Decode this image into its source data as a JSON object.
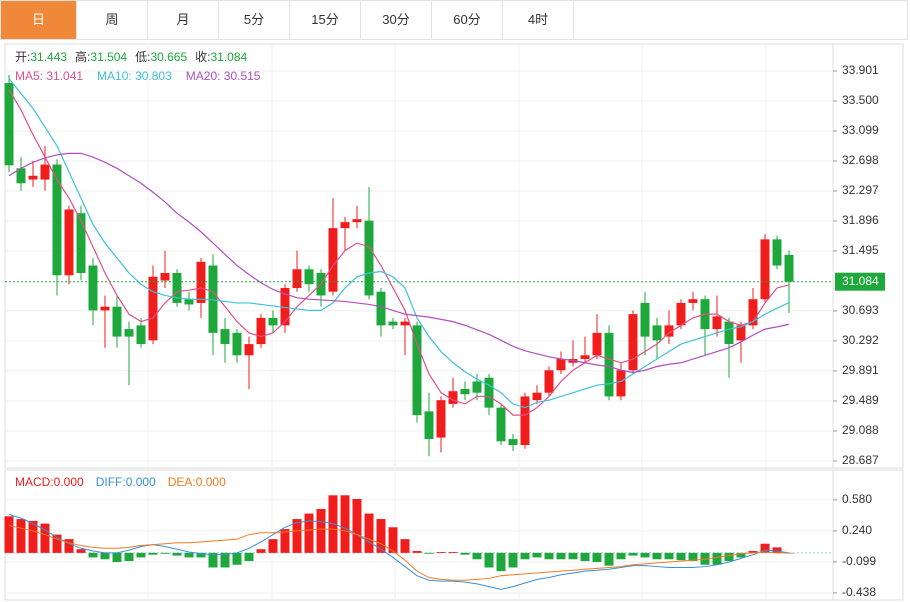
{
  "tabs": [
    "日",
    "周",
    "月",
    "5分",
    "15分",
    "30分",
    "60分",
    "4时"
  ],
  "chart_data": [
    {
      "type": "candlestick",
      "info": [
        {
          "label": "开:",
          "value": 31.443
        },
        {
          "label": "高:",
          "value": 31.504
        },
        {
          "label": "低:",
          "value": 30.665
        },
        {
          "label": "收:",
          "value": 31.084
        }
      ],
      "open": [
        33.74,
        32.6,
        32.45,
        32.45,
        32.65,
        31.17,
        32.0,
        31.3,
        30.7,
        30.75,
        30.45,
        30.5,
        30.3,
        31.1,
        31.2,
        30.85,
        30.8,
        31.3,
        30.45,
        30.4,
        30.1,
        30.25,
        30.6,
        30.5,
        31.0,
        31.25,
        31.2,
        30.95,
        31.8,
        31.88,
        31.9,
        30.95,
        30.55,
        30.5,
        30.5,
        29.35,
        29.0,
        29.45,
        29.65,
        29.75,
        29.8,
        29.4,
        28.98,
        28.9,
        29.5,
        29.6,
        29.9,
        30.0,
        30.05,
        30.1,
        30.4,
        29.55,
        29.9,
        30.8,
        30.5,
        30.35,
        30.5,
        30.8,
        30.85,
        30.45,
        30.55,
        30.3,
        30.5,
        30.85,
        31.65,
        31.443
      ],
      "high": [
        33.85,
        32.75,
        32.7,
        32.9,
        32.72,
        32.1,
        32.1,
        31.4,
        30.9,
        30.9,
        30.55,
        30.6,
        31.3,
        31.5,
        31.25,
        30.95,
        31.4,
        31.45,
        30.6,
        30.45,
        30.35,
        30.65,
        30.7,
        31.05,
        31.5,
        31.3,
        31.25,
        32.2,
        31.95,
        32.1,
        32.35,
        31.0,
        30.6,
        30.6,
        30.55,
        29.6,
        29.55,
        29.8,
        29.75,
        29.85,
        29.85,
        29.45,
        29.05,
        29.6,
        29.7,
        29.95,
        30.15,
        30.3,
        30.35,
        30.65,
        30.5,
        30.0,
        30.7,
        30.95,
        30.6,
        30.7,
        30.85,
        30.95,
        30.9,
        30.9,
        30.6,
        30.55,
        31.0,
        31.72,
        31.7,
        31.504
      ],
      "low": [
        32.55,
        32.3,
        32.35,
        32.3,
        30.9,
        31.05,
        31.1,
        30.5,
        30.2,
        30.2,
        29.7,
        30.2,
        30.25,
        31.0,
        30.75,
        30.7,
        30.6,
        30.1,
        30.0,
        30.0,
        29.65,
        30.2,
        30.4,
        30.4,
        30.95,
        30.95,
        30.75,
        30.9,
        31.5,
        31.8,
        30.85,
        30.35,
        30.45,
        30.1,
        29.2,
        28.75,
        28.8,
        29.4,
        29.5,
        29.5,
        29.3,
        28.9,
        28.82,
        28.85,
        29.45,
        29.55,
        29.85,
        29.95,
        30.0,
        30.05,
        29.5,
        29.5,
        29.85,
        30.1,
        30.05,
        30.25,
        30.45,
        30.7,
        30.1,
        30.35,
        29.8,
        30.0,
        30.45,
        30.8,
        31.25,
        30.665
      ],
      "close": [
        32.64,
        32.4,
        32.5,
        32.65,
        31.17,
        32.05,
        31.2,
        30.7,
        30.75,
        30.35,
        30.35,
        30.25,
        31.15,
        31.2,
        30.8,
        30.78,
        31.35,
        30.4,
        30.25,
        30.1,
        30.25,
        30.6,
        30.5,
        31.0,
        31.25,
        31.05,
        30.9,
        31.8,
        31.88,
        31.92,
        30.9,
        30.5,
        30.5,
        30.55,
        29.3,
        28.98,
        29.5,
        29.62,
        29.58,
        29.6,
        29.4,
        28.95,
        28.9,
        29.55,
        29.6,
        29.9,
        30.05,
        30.05,
        30.1,
        30.4,
        29.55,
        29.9,
        30.65,
        30.35,
        30.3,
        30.5,
        30.8,
        30.85,
        30.45,
        30.62,
        30.25,
        30.5,
        30.85,
        31.65,
        31.3,
        31.084
      ],
      "up_color": "#f01d1d",
      "down_color": "#1ea83c",
      "series": [
        {
          "name": "MA5",
          "legend_label": "MA5: 31.041",
          "color": "#e0508a",
          "values": [
            33.65,
            33.38,
            33.05,
            32.75,
            32.45,
            32.2,
            31.9,
            31.55,
            31.2,
            30.9,
            30.65,
            30.55,
            30.6,
            30.8,
            30.95,
            30.97,
            31.0,
            30.95,
            30.75,
            30.55,
            30.4,
            30.35,
            30.4,
            30.55,
            30.75,
            30.9,
            31.05,
            31.3,
            31.5,
            31.6,
            31.55,
            31.3,
            31.0,
            30.7,
            30.25,
            29.85,
            29.6,
            29.5,
            29.45,
            29.55,
            29.55,
            29.45,
            29.3,
            29.3,
            29.4,
            29.55,
            29.75,
            29.9,
            30.0,
            30.1,
            30.05,
            30.0,
            30.05,
            30.15,
            30.25,
            30.4,
            30.5,
            30.6,
            30.65,
            30.65,
            30.55,
            30.5,
            30.55,
            30.8,
            31.0,
            31.041
          ]
        },
        {
          "name": "MA10",
          "legend_label": "MA10: 30.803",
          "color": "#3ec1d9",
          "values": [
            33.8,
            33.6,
            33.4,
            33.15,
            32.9,
            32.55,
            32.2,
            31.85,
            31.6,
            31.4,
            31.2,
            31.05,
            30.95,
            30.9,
            30.87,
            30.85,
            30.85,
            30.84,
            30.82,
            30.8,
            30.8,
            30.78,
            30.76,
            30.74,
            30.72,
            30.7,
            30.7,
            30.8,
            31.0,
            31.15,
            31.2,
            31.22,
            31.15,
            31.0,
            30.6,
            30.35,
            30.15,
            30.0,
            29.88,
            29.78,
            29.7,
            29.6,
            29.45,
            29.4,
            29.47,
            29.5,
            29.55,
            29.6,
            29.65,
            29.7,
            29.72,
            29.75,
            29.85,
            29.95,
            30.05,
            30.15,
            30.25,
            30.3,
            30.35,
            30.4,
            30.45,
            30.48,
            30.55,
            30.65,
            30.73,
            30.803
          ]
        },
        {
          "name": "MA20",
          "legend_label": "MA20: 30.515",
          "color": "#b050c0",
          "values": [
            32.5,
            32.6,
            32.68,
            32.74,
            32.78,
            32.8,
            32.8,
            32.75,
            32.68,
            32.6,
            32.5,
            32.4,
            32.28,
            32.15,
            32.0,
            31.88,
            31.75,
            31.6,
            31.45,
            31.3,
            31.18,
            31.07,
            30.98,
            30.92,
            30.87,
            30.85,
            30.84,
            30.83,
            30.82,
            30.8,
            30.78,
            30.75,
            30.7,
            30.65,
            30.63,
            30.61,
            30.58,
            30.55,
            30.5,
            30.44,
            30.38,
            30.3,
            30.22,
            30.16,
            30.12,
            30.08,
            30.05,
            30.03,
            30.0,
            29.97,
            29.95,
            29.9,
            29.87,
            29.9,
            29.95,
            29.98,
            30.0,
            30.05,
            30.1,
            30.15,
            30.2,
            30.28,
            30.37,
            30.45,
            30.48,
            30.515
          ]
        }
      ],
      "last_price": 31.084,
      "last_price_color": "#1ea83c",
      "ylim": [
        28.593,
        34.262
      ],
      "yticks": [
        33.901,
        {
          "value": 33.5,
          "label": "33.500"
        },
        33.099,
        32.698,
        32.297,
        31.896,
        31.495,
        30.693,
        30.292,
        29.891,
        29.489,
        29.088,
        28.687
      ],
      "grid": true
    },
    {
      "type": "macd",
      "legend_label": "MACD:0.000",
      "values": [
        0.4,
        0.37,
        0.35,
        0.32,
        0.2,
        0.15,
        0.04,
        -0.05,
        -0.07,
        -0.1,
        -0.09,
        -0.05,
        -0.02,
        -0.01,
        -0.03,
        -0.05,
        -0.05,
        -0.16,
        -0.16,
        -0.13,
        -0.09,
        0.04,
        0.15,
        0.26,
        0.37,
        0.43,
        0.48,
        0.63,
        0.63,
        0.59,
        0.43,
        0.37,
        0.28,
        0.15,
        0.02,
        -0.01,
        0.01,
        0.01,
        -0.02,
        -0.07,
        -0.16,
        -0.2,
        -0.16,
        -0.07,
        -0.05,
        -0.07,
        -0.07,
        -0.07,
        -0.09,
        -0.1,
        -0.14,
        -0.07,
        -0.03,
        -0.05,
        -0.07,
        -0.07,
        -0.08,
        -0.09,
        -0.13,
        -0.13,
        -0.09,
        -0.05,
        0.02,
        0.1,
        0.06,
        0
      ],
      "up_color": "#f01d1d",
      "down_color": "#1ea83c",
      "series": [
        {
          "name": "DIFF",
          "legend_label": "DIFF:0.000",
          "color": "#3a8fd8",
          "values": [
            0.42,
            0.38,
            0.32,
            0.25,
            0.17,
            0.1,
            0.05,
            0.02,
            0,
            0,
            0.03,
            0.07,
            0.09,
            0.07,
            0.04,
            0.01,
            -0.01,
            -0.02,
            -0.02,
            0,
            0.05,
            0.12,
            0.2,
            0.28,
            0.33,
            0.35,
            0.34,
            0.32,
            0.27,
            0.2,
            0.12,
            0.04,
            -0.05,
            -0.15,
            -0.25,
            -0.3,
            -0.31,
            -0.31,
            -0.32,
            -0.34,
            -0.37,
            -0.4,
            -0.37,
            -0.33,
            -0.29,
            -0.27,
            -0.24,
            -0.22,
            -0.2,
            -0.19,
            -0.18,
            -0.16,
            -0.14,
            -0.14,
            -0.15,
            -0.16,
            -0.16,
            -0.16,
            -0.15,
            -0.13,
            -0.1,
            -0.06,
            -0.02,
            0.03,
            0.02,
            0
          ]
        },
        {
          "name": "DEA",
          "legend_label": "DEA:0.000",
          "color": "#f07a20",
          "values": [
            0.3,
            0.27,
            0.24,
            0.2,
            0.15,
            0.11,
            0.08,
            0.06,
            0.05,
            0.05,
            0.06,
            0.08,
            0.09,
            0.1,
            0.11,
            0.11,
            0.12,
            0.13,
            0.14,
            0.15,
            0.2,
            0.22,
            0.22,
            0.23,
            0.24,
            0.25,
            0.26,
            0.26,
            0.24,
            0.2,
            0.15,
            0.1,
            0.02,
            -0.08,
            -0.2,
            -0.27,
            -0.29,
            -0.3,
            -0.3,
            -0.29,
            -0.28,
            -0.25,
            -0.24,
            -0.23,
            -0.22,
            -0.21,
            -0.2,
            -0.19,
            -0.18,
            -0.17,
            -0.16,
            -0.15,
            -0.13,
            -0.12,
            -0.11,
            -0.1,
            -0.09,
            -0.08,
            -0.07,
            -0.05,
            -0.03,
            -0.01,
            0,
            0.01,
            0,
            0
          ]
        }
      ],
      "legend_label_color": "#f01d1d",
      "ylim": [
        -0.516,
        0.907
      ],
      "yticks": [
        {
          "value": 0.58,
          "label": "0.580"
        },
        {
          "value": 0.24,
          "label": "0.240"
        },
        -0.099,
        -0.438
      ],
      "grid": true
    }
  ]
}
